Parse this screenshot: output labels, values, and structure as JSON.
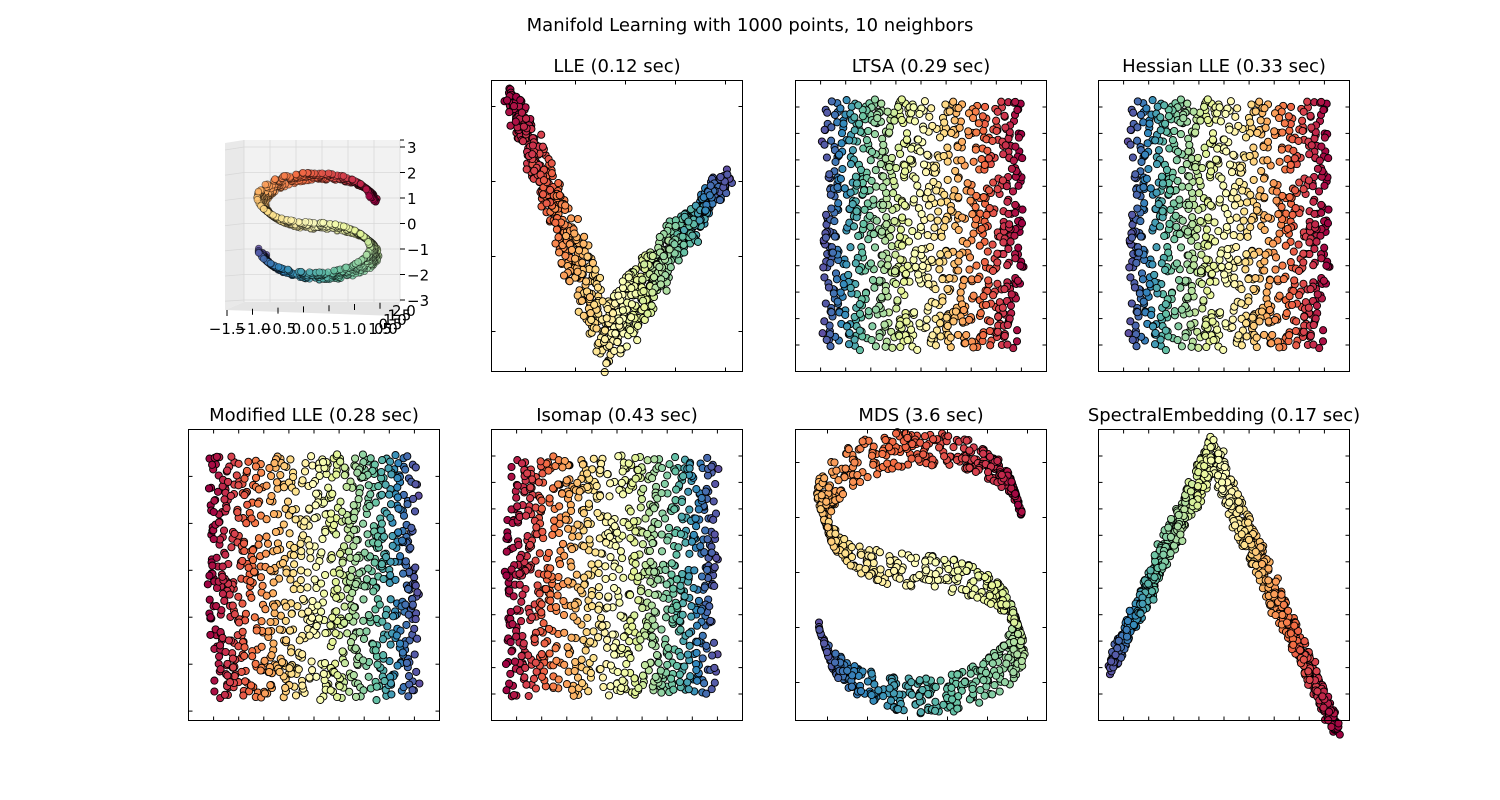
{
  "figure": {
    "suptitle": "Manifold Learning with 1000 points, 10 neighbors"
  },
  "colormap": [
    "#9e0142",
    "#d53e4f",
    "#f46d43",
    "#fdae61",
    "#fee08b",
    "#ffffbf",
    "#e6f598",
    "#abdda4",
    "#66c2a5",
    "#3288bd",
    "#5e4fa2"
  ],
  "chart_data": [
    {
      "type": "scatter",
      "panel": "s-curve-3d",
      "title": "",
      "x_ticks": [
        "−1.5",
        "−1.0",
        "−0.5",
        "0.0",
        "0.5",
        "1.0",
        "1.5"
      ],
      "y_ticks": [
        "0.0",
        "0.5",
        "1.0",
        "1.5",
        "2.0"
      ],
      "z_ticks": [
        "3",
        "2",
        "1",
        "0",
        "−1",
        "−2",
        "−3"
      ],
      "xlim": [
        -1.5,
        1.5
      ],
      "zlim": [
        -3,
        3
      ],
      "n_points": 1000,
      "shape": "S-curve colored by position along curve"
    },
    {
      "type": "scatter",
      "panel": "lle",
      "title": "LLE (0.12 sec)",
      "shape": "V-shape",
      "n_points": 1000
    },
    {
      "type": "scatter",
      "panel": "ltsa",
      "title": "LTSA (0.29 sec)",
      "shape": "uniform square",
      "n_points": 1000
    },
    {
      "type": "scatter",
      "panel": "hessian-lle",
      "title": "Hessian LLE (0.33 sec)",
      "shape": "uniform square",
      "n_points": 1000
    },
    {
      "type": "scatter",
      "panel": "modified-lle",
      "title": "Modified LLE (0.28 sec)",
      "shape": "uniform square",
      "n_points": 1000
    },
    {
      "type": "scatter",
      "panel": "isomap",
      "title": "Isomap (0.43 sec)",
      "shape": "uniform square",
      "n_points": 1000
    },
    {
      "type": "scatter",
      "panel": "mds",
      "title": "MDS (3.6 sec)",
      "shape": "mirrored S-curve",
      "n_points": 1000
    },
    {
      "type": "scatter",
      "panel": "spectral-embedding",
      "title": "SpectralEmbedding (0.17 sec)",
      "shape": "inverted V",
      "n_points": 1000
    }
  ]
}
